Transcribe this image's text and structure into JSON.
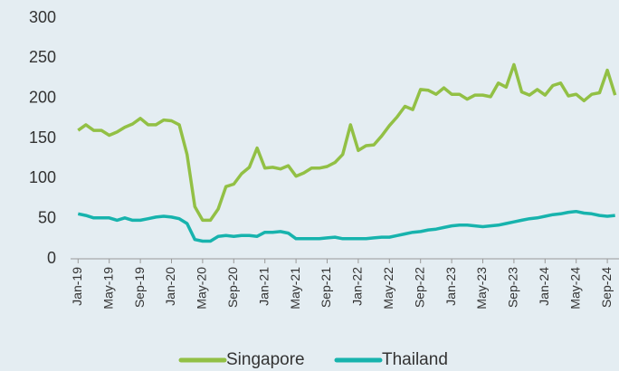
{
  "chart_data": {
    "type": "line",
    "categories": [
      "Jan-19",
      null,
      null,
      null,
      "May-19",
      null,
      null,
      null,
      "Sep-19",
      null,
      null,
      null,
      "Jan-20",
      null,
      null,
      null,
      "May-20",
      null,
      null,
      null,
      "Sep-20",
      null,
      null,
      null,
      "Jan-21",
      null,
      null,
      null,
      "May-21",
      null,
      null,
      null,
      "Sep-21",
      null,
      null,
      null,
      "Jan-22",
      null,
      null,
      null,
      "May-22",
      null,
      null,
      null,
      "Sep-22",
      null,
      null,
      null,
      "Jan-23",
      null,
      null,
      null,
      "May-23",
      null,
      null,
      null,
      "Sep-23",
      null,
      null,
      null,
      "Jan-24",
      null,
      null,
      null,
      "May-24",
      null,
      null,
      null,
      "Sep-24",
      null
    ],
    "series": [
      {
        "name": "Singapore",
        "color": "#92c045",
        "values": [
          160,
          167,
          160,
          160,
          154,
          158,
          164,
          168,
          175,
          167,
          167,
          173,
          172,
          167,
          130,
          65,
          48,
          48,
          62,
          90,
          93,
          106,
          114,
          138,
          113,
          114,
          112,
          116,
          103,
          107,
          113,
          113,
          115,
          120,
          130,
          167,
          135,
          141,
          142,
          153,
          166,
          177,
          190,
          186,
          211,
          210,
          205,
          213,
          205,
          205,
          199,
          204,
          204,
          202,
          219,
          214,
          242,
          208,
          204,
          211,
          204,
          216,
          219,
          203,
          205,
          197,
          205,
          207,
          235,
          204
        ]
      },
      {
        "name": "Thailand",
        "color": "#17b3ad",
        "values": [
          56,
          54,
          51,
          51,
          51,
          48,
          51,
          48,
          48,
          50,
          52,
          53,
          52,
          50,
          44,
          24,
          22,
          22,
          28,
          29,
          28,
          29,
          29,
          28,
          33,
          33,
          34,
          32,
          25,
          25,
          25,
          25,
          26,
          27,
          25,
          25,
          25,
          25,
          26,
          27,
          27,
          29,
          31,
          33,
          34,
          36,
          37,
          39,
          41,
          42,
          42,
          41,
          40,
          41,
          42,
          44,
          46,
          48,
          50,
          51,
          53,
          55,
          56,
          58,
          59,
          57,
          56,
          54,
          53,
          54
        ]
      }
    ],
    "ylim": [
      0,
      300
    ],
    "yticks": [
      0,
      50,
      100,
      150,
      200,
      250,
      300
    ]
  }
}
